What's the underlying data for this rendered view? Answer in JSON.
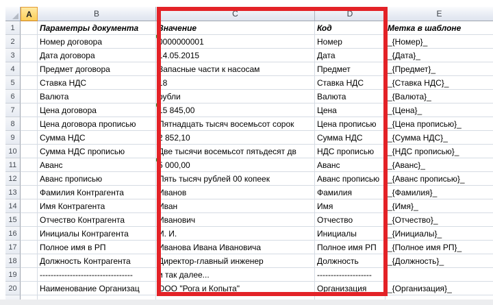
{
  "selection": {
    "selected_column": "A"
  },
  "annotation": {
    "shape": "rectangle",
    "color": "#E32227"
  },
  "colors": {
    "selected_header_fill": "#FBCE57",
    "error_indicator_green": "#2E9432",
    "grid_line": "#D5DBE3"
  },
  "columns": [
    {
      "letter": "A"
    },
    {
      "letter": "B"
    },
    {
      "letter": "C"
    },
    {
      "letter": "D"
    },
    {
      "letter": "E"
    }
  ],
  "rows": [
    {
      "num": "1",
      "header_style": true,
      "cells": {
        "a": "",
        "b": "Параметры документа",
        "c": "Значение",
        "d": "Код",
        "e": "Метка в шаблоне"
      }
    },
    {
      "num": "2",
      "c_error": true,
      "cells": {
        "a": "",
        "b": "Номер договора",
        "c": "0000000001",
        "d": "Номер",
        "e": "_{Номер}_"
      }
    },
    {
      "num": "3",
      "cells": {
        "a": "",
        "b": "Дата договора",
        "c": "14.05.2015",
        "d": "Дата",
        "e": "_{Дата}_"
      }
    },
    {
      "num": "4",
      "cells": {
        "a": "",
        "b": "Предмет договора",
        "c": "Запасные части к насосам",
        "d": "Предмет",
        "e": "_{Предмет}_"
      }
    },
    {
      "num": "5",
      "cells": {
        "a": "",
        "b": "Ставка НДС",
        "c": "18",
        "d": "Ставка НДС",
        "e": "_{Ставка НДС}_"
      }
    },
    {
      "num": "6",
      "cells": {
        "a": "",
        "b": "Валюта",
        "c": "рубли",
        "d": "Валюта",
        "e": "_{Валюта}_"
      }
    },
    {
      "num": "7",
      "c_error": true,
      "cells": {
        "a": "",
        "b": "Цена договора",
        "c": "15 845,00",
        "d": "Цена",
        "e": "_{Цена}_"
      }
    },
    {
      "num": "8",
      "cells": {
        "a": "",
        "b": "Цена договора прописью",
        "c": "Пятнадцать тысяч восемьсот сорок",
        "d": "Цена прописью",
        "e": "_{Цена прописью}_"
      }
    },
    {
      "num": "9",
      "cells": {
        "a": "",
        "b": "Сумма НДС",
        "c": "2 852,10",
        "d": "Сумма НДС",
        "e": "_{Сумма НДС}_"
      }
    },
    {
      "num": "10",
      "cells": {
        "a": "",
        "b": "Сумма НДС прописью",
        "c": "Две тысячи восемьсот пятьдесят дв",
        "d": "НДС прописью",
        "e": "_{НДС прописью}_"
      }
    },
    {
      "num": "11",
      "c_error": true,
      "cells": {
        "a": "",
        "b": "Аванс",
        "c": "5 000,00",
        "d": "Аванс",
        "e": "_{Аванс}_"
      }
    },
    {
      "num": "12",
      "cells": {
        "a": "",
        "b": "Аванс прописью",
        "c": "Пять тысяч рублей 00 копеек",
        "d": "Аванс прописью",
        "e": "_{Аванс прописью}_"
      }
    },
    {
      "num": "13",
      "cells": {
        "a": "",
        "b": "Фамилия Контрагента",
        "c": "Иванов",
        "d": "Фамилия",
        "e": "_{Фамилия}_"
      }
    },
    {
      "num": "14",
      "cells": {
        "a": "",
        "b": "Имя Контрагента",
        "c": "Иван",
        "d": "Имя",
        "e": "_{Имя}_"
      }
    },
    {
      "num": "15",
      "cells": {
        "a": "",
        "b": "Отчество Контрагента",
        "c": "Иванович",
        "d": "Отчество",
        "e": "_{Отчество}_"
      }
    },
    {
      "num": "16",
      "cells": {
        "a": "",
        "b": "Инициалы Контрагента",
        "c": "И. И.",
        "d": "Инициалы",
        "e": "_{Инициалы}_"
      }
    },
    {
      "num": "17",
      "cells": {
        "a": "",
        "b": "Полное имя в РП",
        "c": "Иванова Ивана Ивановича",
        "d": "Полное имя РП",
        "e": "_{Полное имя РП}_"
      }
    },
    {
      "num": "18",
      "cells": {
        "a": "",
        "b": "Должность Контрагента",
        "c": "Директор-главный инженер",
        "d": "Должность",
        "e": "_{Должность}_"
      }
    },
    {
      "num": "19",
      "cells": {
        "a": "",
        "b": "----------------------------------",
        "c": "и так далее...",
        "d": "--------------------",
        "e": ""
      }
    },
    {
      "num": "20",
      "cells": {
        "a": "",
        "b": "Наименование Организац",
        "c": "ООО \"Рога и Копыта\"",
        "d": "Организация",
        "e": "_{Организация}_"
      }
    },
    {
      "num": "",
      "cells": {
        "a": "",
        "b": "",
        "c": "",
        "d": "",
        "e": ""
      }
    }
  ]
}
